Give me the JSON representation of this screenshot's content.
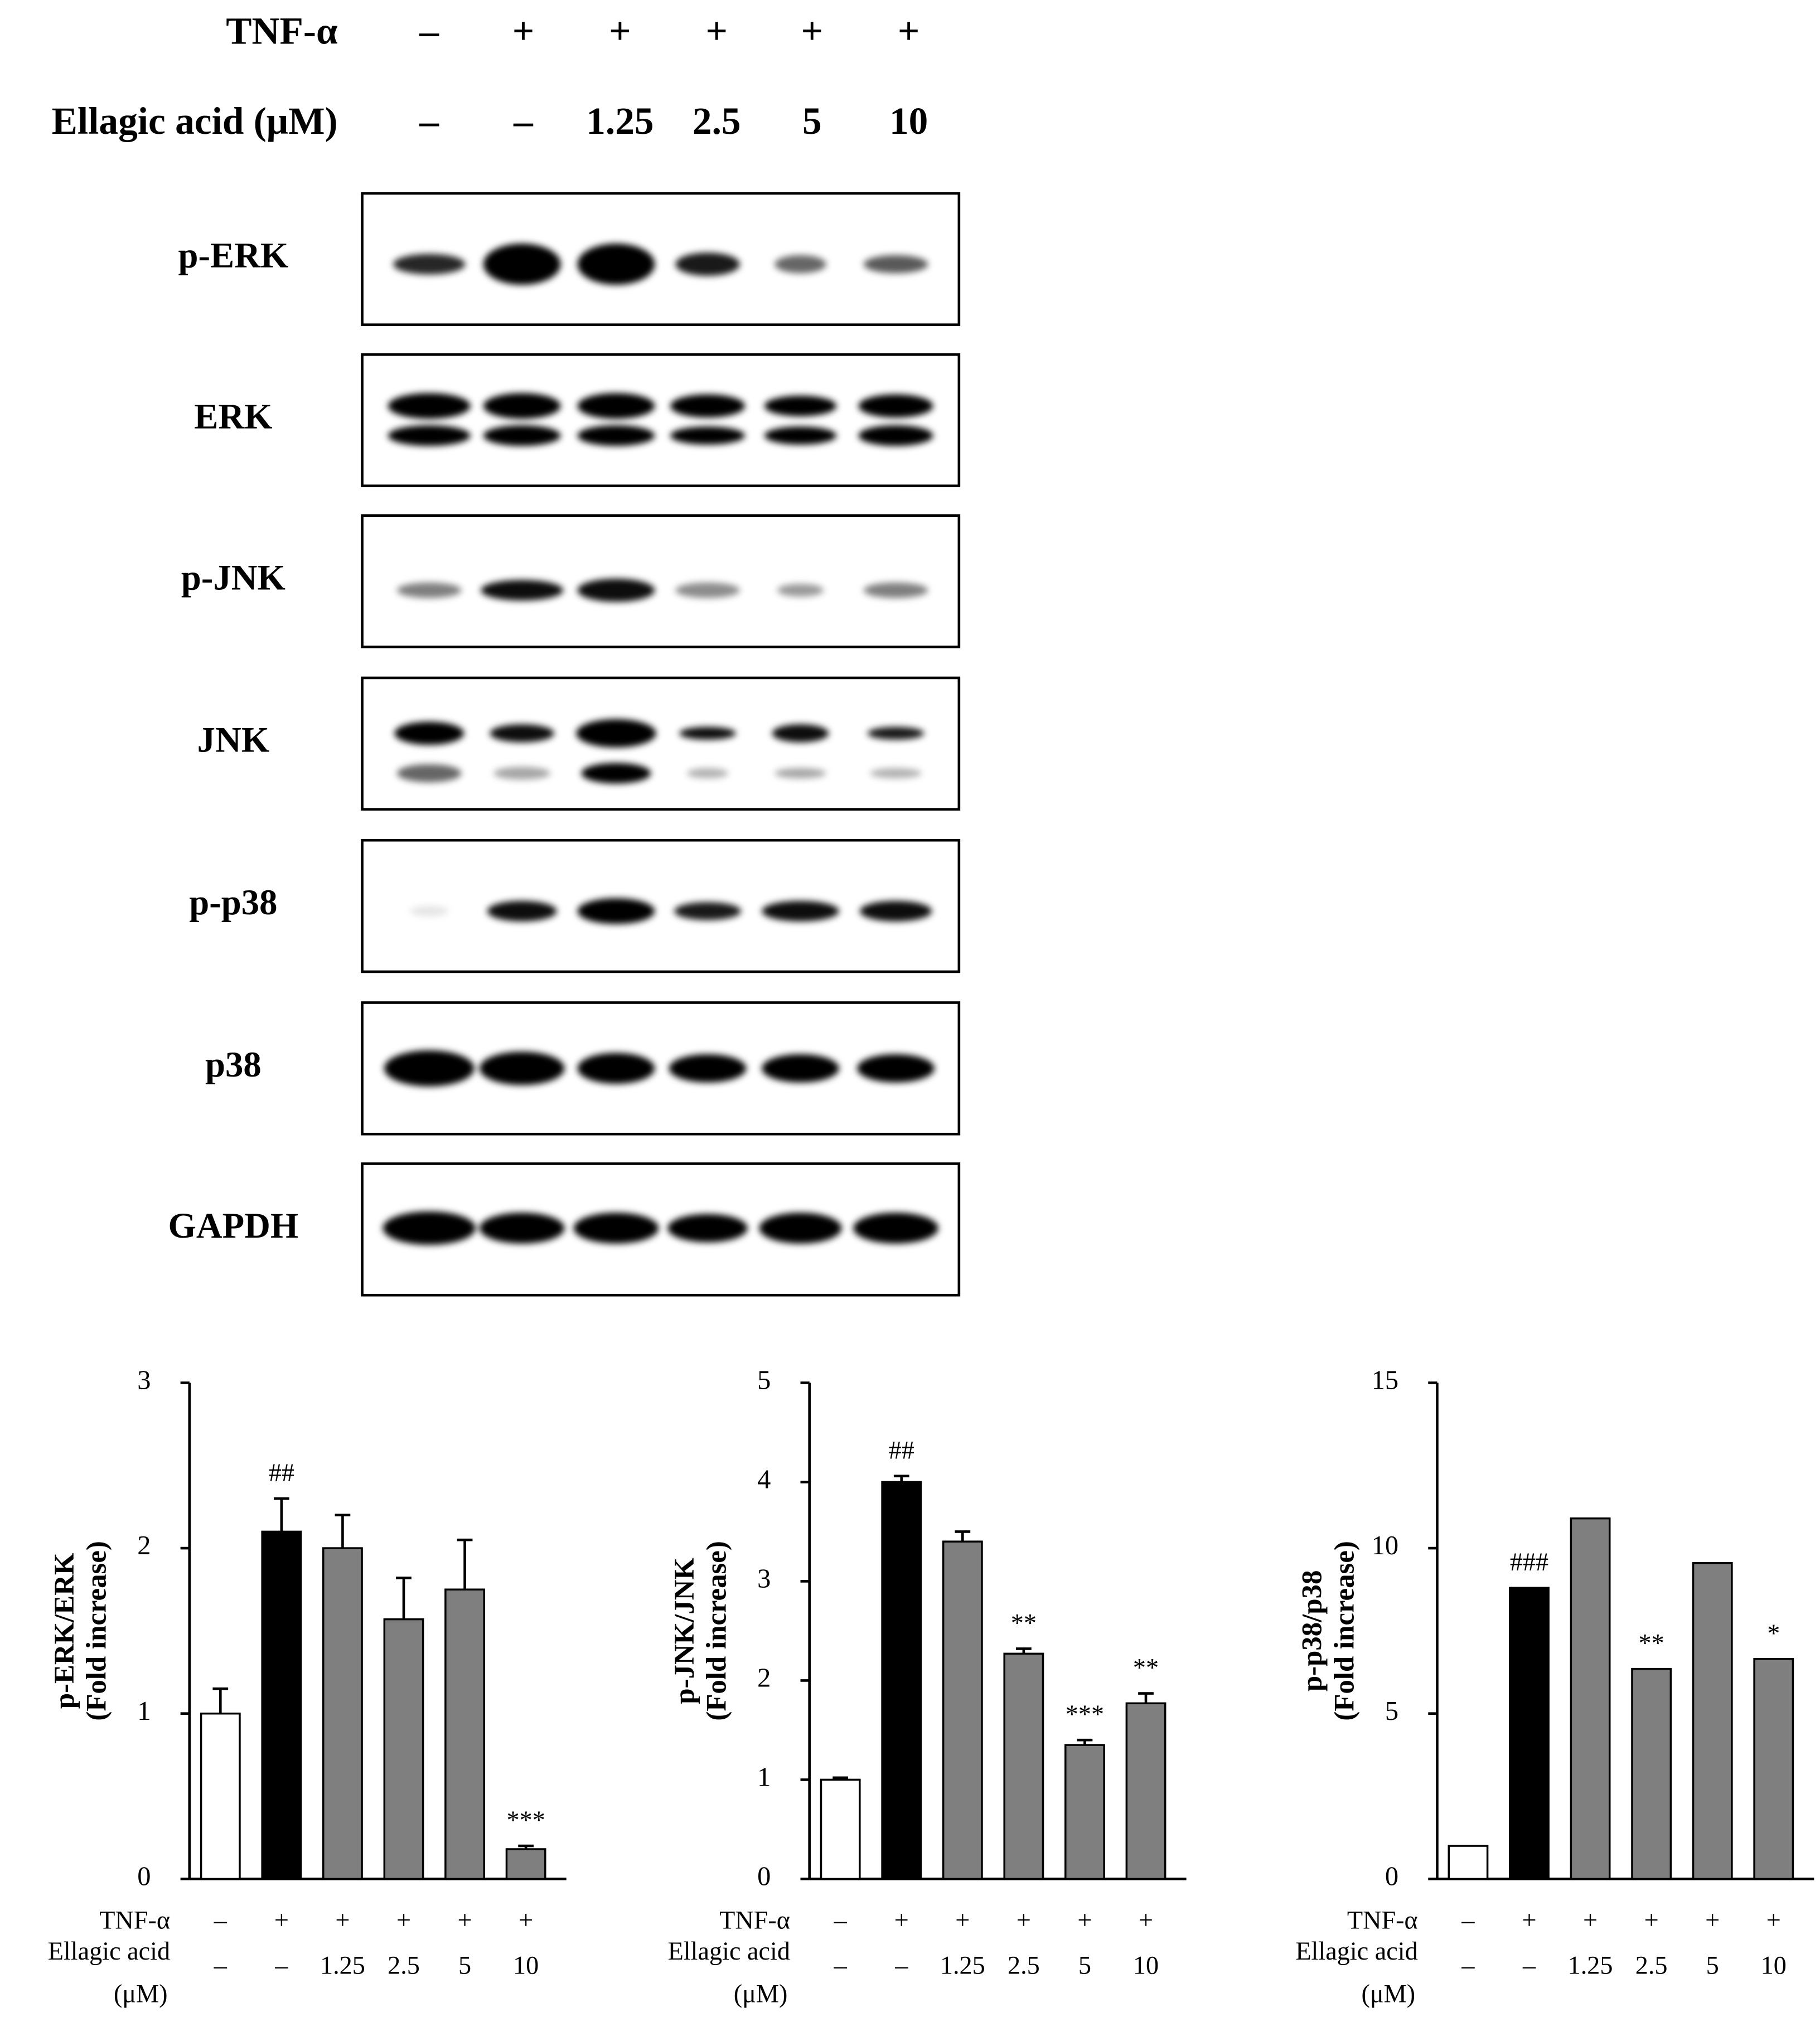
{
  "blot": {
    "conditions": [
      {
        "label": "TNF-α",
        "values": [
          "–",
          "+",
          "+",
          "+",
          "+",
          "+"
        ]
      },
      {
        "label": "Ellagic acid (μM)",
        "values": [
          "–",
          "–",
          "1.25",
          "2.5",
          "5",
          "10"
        ]
      }
    ],
    "panels": [
      "p-ERK",
      "ERK",
      "p-JNK",
      "JNK",
      "p-p38",
      "p38",
      "GAPDH"
    ]
  },
  "chart_data": [
    {
      "type": "bar",
      "ylabel": [
        "p-ERK/ERK",
        "(Fold increase)"
      ],
      "values": [
        1.0,
        2.1,
        2.0,
        1.57,
        1.75,
        0.18
      ],
      "errors": [
        0.15,
        0.2,
        0.2,
        0.25,
        0.3,
        0.02
      ],
      "colors": [
        "#ffffff",
        "#000000",
        "#7f7f7f",
        "#7f7f7f",
        "#7f7f7f",
        "#7f7f7f"
      ],
      "value_annotations": [
        null,
        "##",
        null,
        null,
        null,
        "***"
      ],
      "ylim": [
        0,
        3
      ],
      "yticks": [
        0,
        1,
        2,
        3
      ],
      "conditions": [
        {
          "label": [
            "TNF-α"
          ],
          "values": [
            "–",
            "+",
            "+",
            "+",
            "+",
            "+"
          ]
        },
        {
          "label": [
            "Ellagic acid",
            "(μM)"
          ],
          "values": [
            "–",
            "–",
            "1.25",
            "2.5",
            "5",
            "10"
          ]
        }
      ]
    },
    {
      "type": "bar",
      "ylabel": [
        "p-JNK/JNK",
        "(Fold increase)"
      ],
      "values": [
        1.0,
        4.0,
        3.4,
        2.27,
        1.35,
        1.77
      ],
      "errors": [
        0.02,
        0.06,
        0.1,
        0.05,
        0.05,
        0.1
      ],
      "colors": [
        "#ffffff",
        "#000000",
        "#7f7f7f",
        "#7f7f7f",
        "#7f7f7f",
        "#7f7f7f"
      ],
      "value_annotations": [
        null,
        "##",
        null,
        "**",
        "***",
        "**"
      ],
      "ylim": [
        0,
        5
      ],
      "yticks": [
        0,
        1,
        2,
        3,
        4,
        5
      ],
      "conditions": [
        {
          "label": [
            "TNF-α"
          ],
          "values": [
            "–",
            "+",
            "+",
            "+",
            "+",
            "+"
          ]
        },
        {
          "label": [
            "Ellagic acid",
            "(μM)"
          ],
          "values": [
            "–",
            "–",
            "1.25",
            "2.5",
            "5",
            "10"
          ]
        }
      ]
    },
    {
      "type": "bar",
      "ylabel": [
        "p-p38/p38",
        "(Fold increase)"
      ],
      "values": [
        1.0,
        8.8,
        10.9,
        6.35,
        9.55,
        6.65
      ],
      "colors": [
        "#ffffff",
        "#000000",
        "#7f7f7f",
        "#7f7f7f",
        "#7f7f7f",
        "#7f7f7f"
      ],
      "value_annotations": [
        null,
        "###",
        null,
        "**",
        null,
        "*"
      ],
      "ylim": [
        0,
        15
      ],
      "yticks": [
        0,
        5,
        10,
        15
      ],
      "conditions": [
        {
          "label": [
            "TNF-α"
          ],
          "values": [
            "–",
            "+",
            "+",
            "+",
            "+",
            "+"
          ]
        },
        {
          "label": [
            "Ellagic acid",
            "(μM)"
          ],
          "values": [
            "–",
            "–",
            "1.25",
            "2.5",
            "5",
            "10"
          ]
        }
      ]
    }
  ]
}
